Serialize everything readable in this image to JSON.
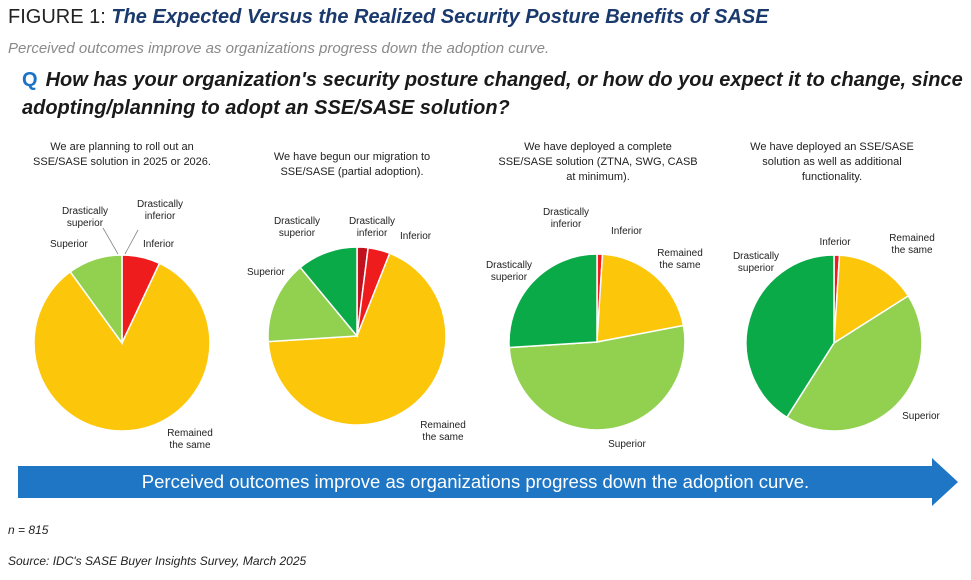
{
  "figure": {
    "label": "FIGURE 1:",
    "title": "The Expected Versus the Realized Security Posture Benefits of SASE",
    "subtitle": "Perceived outcomes improve as organizations progress down the adoption curve."
  },
  "question": {
    "marker": "Q",
    "text": "How has your organization's security posture changed, or how do you expect it to change, since adopting/planning to adopt an SSE/SASE solution?"
  },
  "colors": {
    "Drastically inferior": "#c0121e",
    "Inferior": "#ee1c1c",
    "Remained the same": "#fcc60a",
    "Superior": "#92d050",
    "Drastically superior": "#0aaa48",
    "arrow": "#1f76c4"
  },
  "chart_data": [
    {
      "type": "pie",
      "title": "We are planning to roll out an SSE/SASE solution in 2025 or 2026.",
      "categories": [
        "Drastically inferior",
        "Inferior",
        "Remained the same",
        "Superior",
        "Drastically superior"
      ],
      "values": [
        0,
        7,
        83,
        10,
        0
      ]
    },
    {
      "type": "pie",
      "title": "We have begun our migration to SSE/SASE (partial adoption).",
      "categories": [
        "Drastically inferior",
        "Inferior",
        "Remained the same",
        "Superior",
        "Drastically superior"
      ],
      "values": [
        2,
        4,
        68,
        15,
        11
      ]
    },
    {
      "type": "pie",
      "title": "We have deployed a complete SSE/SASE solution (ZTNA, SWG, CASB at minimum).",
      "categories": [
        "Drastically inferior",
        "Inferior",
        "Remained the same",
        "Superior",
        "Drastically superior"
      ],
      "values": [
        0,
        1,
        21,
        52,
        26
      ]
    },
    {
      "type": "pie",
      "title": "We have deployed an SSE/SASE solution as well as additional functionality.",
      "categories": [
        "Drastically inferior",
        "Inferior",
        "Remained the same",
        "Superior",
        "Drastically superior"
      ],
      "values": [
        0,
        1,
        15,
        43,
        41
      ]
    }
  ],
  "slice_labels": {
    "Drastically inferior": [
      "Drastically",
      "inferior"
    ],
    "Inferior": [
      "Inferior"
    ],
    "Remained the same": [
      "Remained",
      "the same"
    ],
    "Superior": [
      "Superior"
    ],
    "Drastically superior": [
      "Drastically",
      "superior"
    ]
  },
  "arrow_text": "Perceived outcomes improve as organizations progress down the adoption curve.",
  "footnote_n": "n = 815",
  "source": "Source: IDC's SASE Buyer Insights Survey, March 2025"
}
